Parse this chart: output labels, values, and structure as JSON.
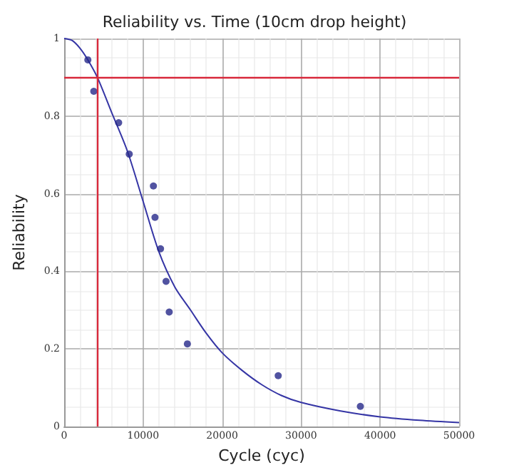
{
  "chart_data": {
    "type": "scatter",
    "title": "Reliability vs. Time (10cm drop height)",
    "xlabel": "Cycle (cyc)",
    "ylabel": "Reliability",
    "xlim": [
      0,
      50000
    ],
    "xticks": [
      0,
      10000,
      20000,
      30000,
      40000,
      50000
    ],
    "ylim": [
      0,
      1
    ],
    "yticks": [
      0,
      0.2,
      0.4,
      0.6,
      0.8,
      1
    ],
    "grid": true,
    "marker": "circle",
    "series": [
      {
        "color": "#26288a",
        "x": [
          3000,
          3750,
          6900,
          8240,
          11300,
          11500,
          12200,
          12900,
          13300,
          15600,
          27100,
          37500
        ],
        "values": [
          0.945,
          0.864,
          0.783,
          0.702,
          0.62,
          0.539,
          0.458,
          0.374,
          0.295,
          0.213,
          0.131,
          0.052
        ]
      },
      {
        "type": "line",
        "color": "#3535a5",
        "marker": "none",
        "line_style": "solid",
        "x": [
          0,
          1000,
          2000,
          3000,
          4200,
          6000,
          8000,
          10000,
          12000,
          14000,
          16000,
          18000,
          20000,
          22500,
          25000,
          27500,
          30000,
          35000,
          40000,
          45000,
          50000
        ],
        "values": [
          1,
          0.995,
          0.975,
          0.945,
          0.9,
          0.81,
          0.71,
          0.58,
          0.45,
          0.36,
          0.3,
          0.24,
          0.19,
          0.145,
          0.108,
          0.08,
          0.062,
          0.04,
          0.025,
          0.016,
          0.01
        ]
      }
    ],
    "ref_lines": [
      {
        "axis": "x",
        "value": 4200,
        "color": "#d8283a"
      },
      {
        "axis": "y",
        "value": 0.9,
        "color": "#d8283a"
      }
    ]
  }
}
